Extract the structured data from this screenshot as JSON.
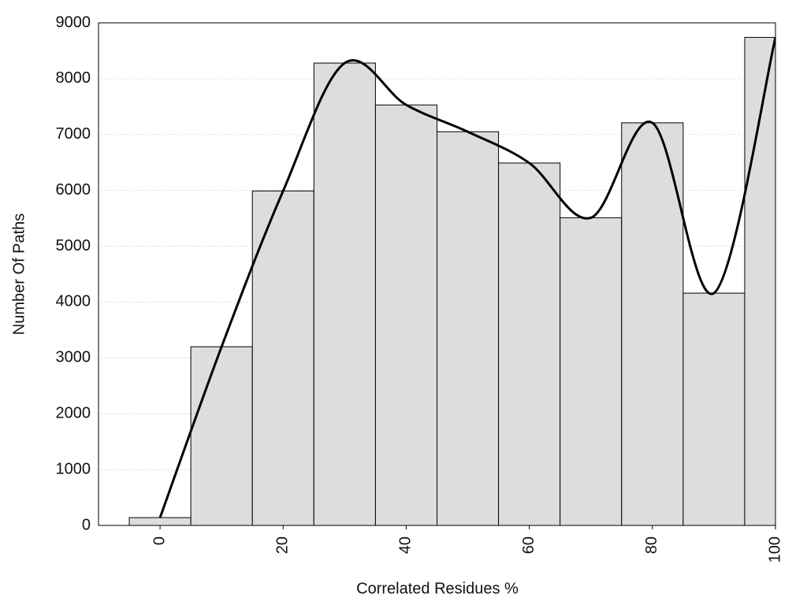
{
  "chart_data": {
    "type": "bar",
    "xlabel": "Correlated Residues %",
    "ylabel": "Number Of Paths",
    "x": [
      0,
      10,
      20,
      30,
      40,
      50,
      60,
      70,
      80,
      90,
      100
    ],
    "values": [
      140,
      3200,
      5990,
      8280,
      7530,
      7050,
      6490,
      5510,
      7210,
      4160,
      8740
    ],
    "color": "#dddddd",
    "line_color": "#000000",
    "xlim": [
      -10,
      100
    ],
    "xticks": [
      0,
      20,
      40,
      60,
      80,
      100
    ],
    "ylim": [
      0,
      9000
    ],
    "yticks": [
      0,
      1000,
      2000,
      3000,
      4000,
      5000,
      6000,
      7000,
      8000,
      9000
    ],
    "grid": true
  }
}
